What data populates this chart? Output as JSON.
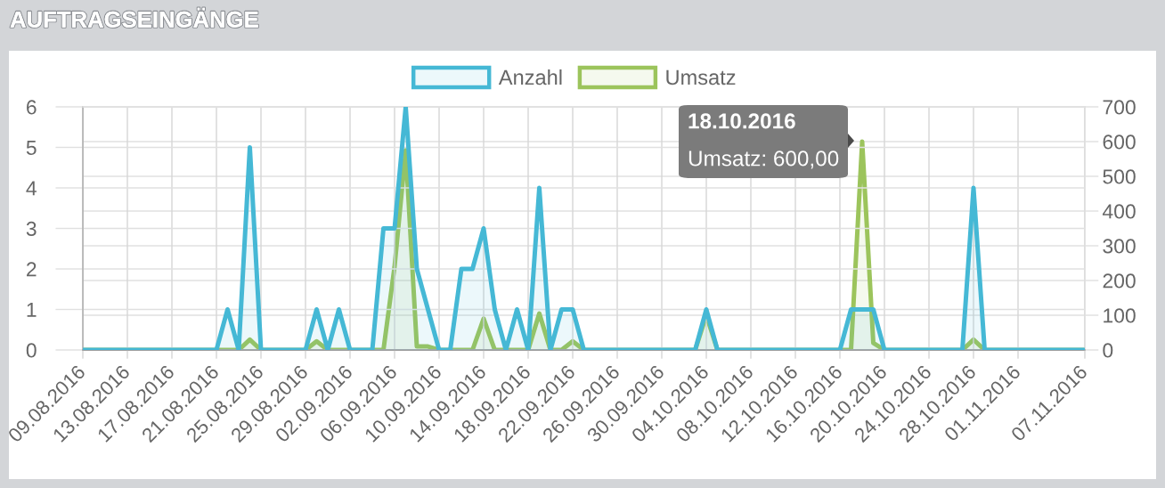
{
  "chart_data": {
    "type": "area",
    "title": "AUFTRAGSEINGÄNGE",
    "categories": [
      "09.08.2016",
      null,
      null,
      null,
      "13.08.2016",
      null,
      null,
      null,
      "17.08.2016",
      null,
      null,
      null,
      "21.08.2016",
      null,
      null,
      null,
      "25.08.2016",
      null,
      null,
      null,
      "29.08.2016",
      null,
      null,
      null,
      "02.09.2016",
      null,
      null,
      null,
      "06.09.2016",
      null,
      null,
      null,
      "10.09.2016",
      null,
      null,
      null,
      "14.09.2016",
      null,
      null,
      null,
      "18.09.2016",
      null,
      null,
      null,
      "22.09.2016",
      null,
      null,
      null,
      "26.09.2016",
      null,
      null,
      null,
      "30.09.2016",
      null,
      null,
      null,
      "04.10.2016",
      null,
      null,
      null,
      "08.10.2016",
      null,
      null,
      null,
      "12.10.2016",
      null,
      null,
      null,
      "16.10.2016",
      null,
      null,
      null,
      "20.10.2016",
      null,
      null,
      null,
      "24.10.2016",
      null,
      null,
      null,
      "28.10.2016",
      null,
      null,
      null,
      "01.11.2016",
      null,
      null,
      null,
      null,
      null,
      "07.11.2016"
    ],
    "series": [
      {
        "name": "Anzahl",
        "color": "#45b8d5",
        "values": [
          0,
          0,
          0,
          0,
          0,
          0,
          0,
          0,
          0,
          0,
          0,
          0,
          0,
          1,
          0,
          5,
          0,
          0,
          0,
          0,
          0,
          1,
          0,
          1,
          0,
          0,
          0,
          3,
          3,
          6,
          2,
          1,
          0,
          0,
          2,
          2,
          3,
          1,
          0,
          1,
          0,
          4,
          0,
          1,
          1,
          0,
          0,
          0,
          0,
          0,
          0,
          0,
          0,
          0,
          0,
          0,
          1,
          0,
          0,
          0,
          0,
          0,
          0,
          0,
          0,
          0,
          0,
          0,
          0,
          1,
          1,
          1,
          0,
          0,
          0,
          0,
          0,
          0,
          0,
          0,
          4,
          0,
          0,
          0,
          0,
          0,
          0,
          0,
          0,
          0,
          0
        ]
      },
      {
        "name": "Umsatz",
        "axis": "y2",
        "color": "#9cc45c",
        "values": [
          0,
          0,
          0,
          0,
          0,
          0,
          0,
          0,
          0,
          0,
          0,
          0,
          0,
          0,
          0,
          30,
          0,
          0,
          0,
          0,
          0,
          25,
          0,
          0,
          0,
          0,
          0,
          0,
          240,
          575,
          10,
          10,
          0,
          0,
          0,
          0,
          90,
          0,
          0,
          0,
          0,
          105,
          0,
          0,
          25,
          0,
          0,
          0,
          0,
          0,
          0,
          0,
          0,
          0,
          0,
          0,
          100,
          0,
          0,
          0,
          0,
          0,
          0,
          0,
          0,
          0,
          0,
          0,
          0,
          0,
          600,
          20,
          0,
          0,
          0,
          0,
          0,
          0,
          0,
          0,
          30,
          0,
          0,
          0,
          0,
          0,
          0,
          0,
          0,
          0,
          0
        ]
      }
    ],
    "ylim": [
      0,
      6
    ],
    "yticks": [
      0,
      1,
      2,
      3,
      4,
      5,
      6
    ],
    "y2lim": [
      0,
      700
    ],
    "y2ticks": [
      0,
      100,
      200,
      300,
      400,
      500,
      600,
      700
    ],
    "annotations": [
      "18.10.2016",
      "Umsatz: 600,00"
    ],
    "grid": true,
    "legend": "top"
  }
}
